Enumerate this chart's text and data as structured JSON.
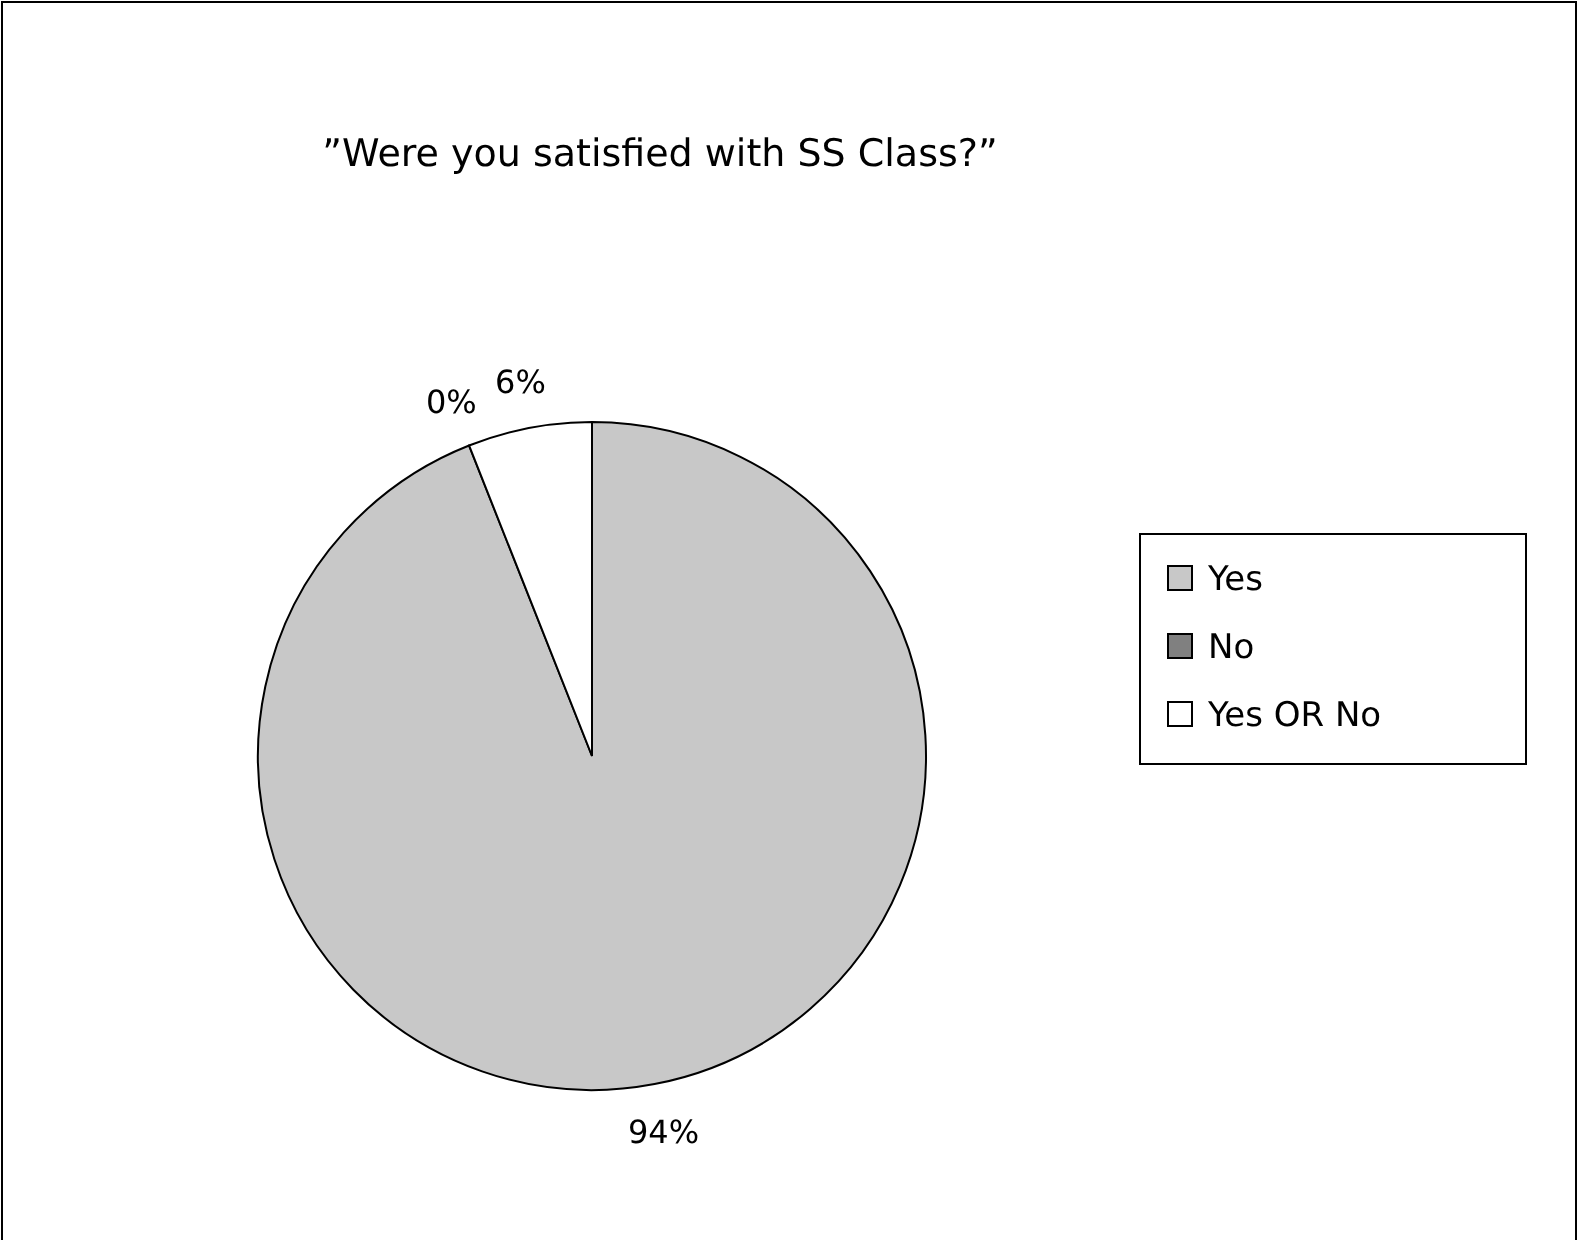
{
  "chart_data": {
    "type": "pie",
    "title": "”Were you satisfied with SS Class?”",
    "categories": [
      "Yes",
      "No",
      "Yes OR No"
    ],
    "values": [
      94,
      0,
      6
    ],
    "colors": [
      "#c8c8c8",
      "#808080",
      "#ffffff"
    ],
    "value_labels": [
      "94%",
      "0%",
      "6%"
    ],
    "legend": "right"
  }
}
